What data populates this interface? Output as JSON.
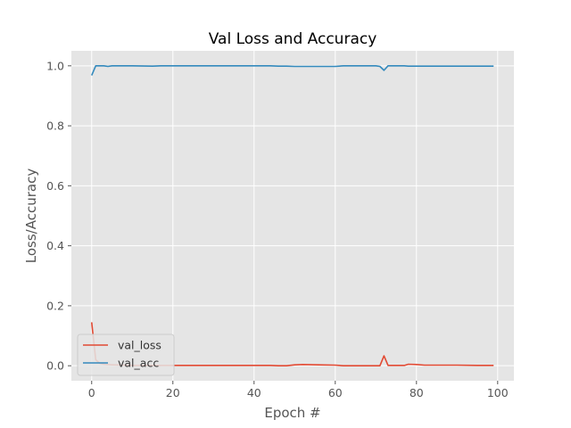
{
  "chart_data": {
    "type": "line",
    "title": "Val Loss and Accuracy",
    "xlabel": "Epoch #",
    "ylabel": "Loss/Accuracy",
    "xlim": [
      -5,
      104
    ],
    "ylim": [
      -0.05,
      1.05
    ],
    "xticks": [
      0,
      20,
      40,
      60,
      80,
      100
    ],
    "yticks": [
      0.0,
      0.2,
      0.4,
      0.6,
      0.8,
      1.0
    ],
    "xtick_labels": [
      "0",
      "20",
      "40",
      "60",
      "80",
      "100"
    ],
    "ytick_labels": [
      "0.0",
      "0.2",
      "0.4",
      "0.6",
      "0.8",
      "1.0"
    ],
    "grid": true,
    "legend_position": "lower-left",
    "series": [
      {
        "name": "val_loss",
        "color": "#E24A33",
        "points": [
          [
            0,
            0.145
          ],
          [
            1,
            0.02
          ],
          [
            2,
            0.008
          ],
          [
            3,
            0.005
          ],
          [
            4,
            0.004
          ],
          [
            5,
            0.003
          ],
          [
            8,
            0.002
          ],
          [
            10,
            0.001
          ],
          [
            20,
            0.001
          ],
          [
            30,
            0.001
          ],
          [
            40,
            0.001
          ],
          [
            44,
            0.001
          ],
          [
            46,
            0.0
          ],
          [
            48,
            0.0
          ],
          [
            50,
            0.003
          ],
          [
            52,
            0.004
          ],
          [
            56,
            0.003
          ],
          [
            60,
            0.002
          ],
          [
            62,
            0.0
          ],
          [
            70,
            0.0
          ],
          [
            71,
            0.0
          ],
          [
            72,
            0.033
          ],
          [
            73,
            0.001
          ],
          [
            77,
            0.001
          ],
          [
            78,
            0.005
          ],
          [
            80,
            0.004
          ],
          [
            82,
            0.002
          ],
          [
            90,
            0.002
          ],
          [
            95,
            0.001
          ],
          [
            99,
            0.001
          ]
        ]
      },
      {
        "name": "val_acc",
        "color": "#348ABD",
        "points": [
          [
            0,
            0.968
          ],
          [
            1,
            1.0
          ],
          [
            2,
            1.0
          ],
          [
            3,
            1.0
          ],
          [
            4,
            0.998
          ],
          [
            5,
            1.0
          ],
          [
            10,
            1.0
          ],
          [
            15,
            0.999
          ],
          [
            17,
            1.0
          ],
          [
            20,
            1.0
          ],
          [
            30,
            1.0
          ],
          [
            40,
            1.0
          ],
          [
            44,
            1.0
          ],
          [
            46,
            0.999
          ],
          [
            48,
            0.999
          ],
          [
            50,
            0.998
          ],
          [
            55,
            0.998
          ],
          [
            60,
            0.998
          ],
          [
            62,
            1.0
          ],
          [
            70,
            1.0
          ],
          [
            71,
            0.998
          ],
          [
            72,
            0.985
          ],
          [
            73,
            1.0
          ],
          [
            77,
            1.0
          ],
          [
            78,
            0.999
          ],
          [
            80,
            0.999
          ],
          [
            90,
            0.999
          ],
          [
            99,
            0.999
          ]
        ]
      }
    ]
  }
}
